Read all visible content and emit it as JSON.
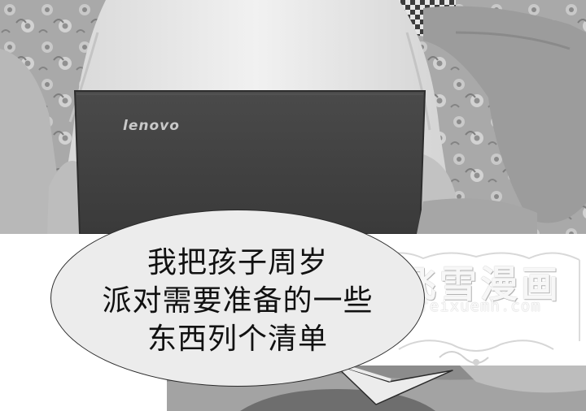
{
  "speech_bubble": {
    "lines": [
      "我把孩子周岁",
      "派对需要准备的一些",
      "东西列个清单"
    ]
  },
  "laptop": {
    "brand": "lenovo"
  },
  "watermark": {
    "title": "飞雪漫画",
    "url": "feixuemh.com"
  }
}
